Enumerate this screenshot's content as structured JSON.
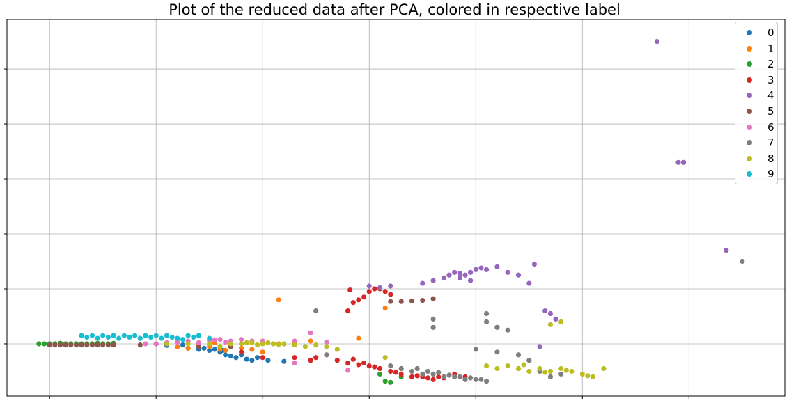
{
  "chart_data": {
    "type": "scatter",
    "title": "Plot of the reduced data after PCA, colored in respective label",
    "xlabel": "",
    "ylabel": "",
    "xlim": [
      -0.4,
      6.9
    ],
    "ylim": [
      -0.95,
      5.9
    ],
    "xticks": [
      0,
      1,
      2,
      3,
      4,
      5,
      6
    ],
    "yticks": [
      0,
      1,
      2,
      3,
      4,
      5
    ],
    "tick_labels_shown": false,
    "grid": true,
    "legend_placement": "upper-right",
    "series": [
      {
        "name": "0",
        "color": "#1f77b4",
        "points": [
          [
            1.0,
            0.0
          ],
          [
            1.1,
            -0.03
          ],
          [
            1.2,
            -0.05
          ],
          [
            1.3,
            -0.08
          ],
          [
            1.4,
            -0.1
          ],
          [
            1.5,
            -0.12
          ],
          [
            1.6,
            -0.15
          ],
          [
            1.65,
            -0.2
          ],
          [
            1.7,
            -0.22
          ],
          [
            1.75,
            -0.25
          ],
          [
            1.8,
            -0.2
          ],
          [
            1.85,
            -0.28
          ],
          [
            1.9,
            -0.3
          ],
          [
            1.95,
            -0.25
          ],
          [
            2.05,
            -0.3
          ],
          [
            2.2,
            -0.32
          ],
          [
            1.25,
            -0.02
          ],
          [
            1.45,
            -0.08
          ],
          [
            1.55,
            -0.1
          ],
          [
            1.62,
            -0.12
          ]
        ]
      },
      {
        "name": "1",
        "color": "#ff7f0e",
        "points": [
          [
            1.2,
            -0.05
          ],
          [
            1.3,
            -0.08
          ],
          [
            1.4,
            -0.02
          ],
          [
            1.5,
            -0.05
          ],
          [
            1.6,
            -0.1
          ],
          [
            1.7,
            -0.05
          ],
          [
            1.8,
            -0.08
          ],
          [
            1.9,
            -0.1
          ],
          [
            2.0,
            -0.15
          ],
          [
            2.15,
            0.0
          ],
          [
            2.3,
            0.0
          ],
          [
            2.45,
            0.05
          ],
          [
            2.9,
            0.1
          ],
          [
            2.15,
            0.8
          ],
          [
            3.15,
            0.65
          ],
          [
            3.1,
            -0.45
          ],
          [
            3.3,
            -0.45
          ],
          [
            1.55,
            0.02
          ],
          [
            1.65,
            -0.12
          ]
        ]
      },
      {
        "name": "2",
        "color": "#2ca02c",
        "points": [
          [
            -0.1,
            0.0
          ],
          [
            -0.05,
            0.0
          ],
          [
            0.0,
            0.0
          ],
          [
            0.05,
            0.0
          ],
          [
            0.1,
            0.01
          ],
          [
            0.15,
            0.0
          ],
          [
            0.2,
            0.0
          ],
          [
            0.25,
            0.0
          ],
          [
            0.3,
            0.0
          ],
          [
            0.35,
            0.0
          ],
          [
            0.4,
            0.0
          ],
          [
            0.45,
            0.01
          ],
          [
            0.5,
            0.0
          ],
          [
            0.55,
            0.0
          ],
          [
            0.6,
            0.01
          ],
          [
            3.1,
            -0.55
          ],
          [
            3.15,
            -0.68
          ],
          [
            3.2,
            -0.7
          ],
          [
            3.3,
            -0.6
          ]
        ]
      },
      {
        "name": "3",
        "color": "#d62728",
        "points": [
          [
            1.8,
            -0.15
          ],
          [
            2.0,
            -0.25
          ],
          [
            2.3,
            -0.25
          ],
          [
            2.45,
            -0.3
          ],
          [
            2.5,
            -0.25
          ],
          [
            2.6,
            -0.2
          ],
          [
            2.7,
            -0.3
          ],
          [
            2.8,
            -0.35
          ],
          [
            2.9,
            -0.38
          ],
          [
            3.0,
            -0.4
          ],
          [
            3.1,
            -0.45
          ],
          [
            3.2,
            -0.5
          ],
          [
            3.3,
            -0.55
          ],
          [
            3.4,
            -0.6
          ],
          [
            3.5,
            -0.6
          ],
          [
            3.6,
            -0.65
          ],
          [
            3.7,
            -0.62
          ],
          [
            3.8,
            -0.55
          ],
          [
            3.9,
            -0.6
          ],
          [
            2.85,
            -0.28
          ],
          [
            2.95,
            -0.35
          ],
          [
            3.05,
            -0.42
          ],
          [
            3.25,
            -0.52
          ],
          [
            3.45,
            -0.58
          ],
          [
            3.55,
            -0.62
          ],
          [
            3.65,
            -0.6
          ],
          [
            2.8,
            0.6
          ],
          [
            2.85,
            0.75
          ],
          [
            2.9,
            0.8
          ],
          [
            2.95,
            0.85
          ],
          [
            3.0,
            0.95
          ],
          [
            3.05,
            1.0
          ],
          [
            3.1,
            1.0
          ],
          [
            3.15,
            0.95
          ],
          [
            3.2,
            0.9
          ],
          [
            2.82,
            0.98
          ]
        ]
      },
      {
        "name": "4",
        "color": "#9467bd",
        "points": [
          [
            3.0,
            1.05
          ],
          [
            3.1,
            1.02
          ],
          [
            3.2,
            1.05
          ],
          [
            3.5,
            1.1
          ],
          [
            3.6,
            1.15
          ],
          [
            3.7,
            1.2
          ],
          [
            3.75,
            1.25
          ],
          [
            3.8,
            1.3
          ],
          [
            3.85,
            1.28
          ],
          [
            3.9,
            1.25
          ],
          [
            3.95,
            1.3
          ],
          [
            4.0,
            1.35
          ],
          [
            4.05,
            1.38
          ],
          [
            4.1,
            1.35
          ],
          [
            4.2,
            1.4
          ],
          [
            4.3,
            1.3
          ],
          [
            4.4,
            1.25
          ],
          [
            4.5,
            1.1
          ],
          [
            4.55,
            1.45
          ],
          [
            4.65,
            0.6
          ],
          [
            4.7,
            0.55
          ],
          [
            4.75,
            0.45
          ],
          [
            4.6,
            -0.05
          ],
          [
            3.85,
            1.2
          ],
          [
            3.95,
            1.15
          ],
          [
            5.7,
            5.5
          ],
          [
            5.9,
            3.3
          ],
          [
            5.95,
            3.3
          ],
          [
            6.35,
            1.7
          ]
        ]
      },
      {
        "name": "5",
        "color": "#8c564b",
        "points": [
          [
            0.0,
            -0.02
          ],
          [
            0.05,
            -0.02
          ],
          [
            0.1,
            -0.02
          ],
          [
            0.15,
            -0.02
          ],
          [
            0.2,
            -0.02
          ],
          [
            0.25,
            -0.02
          ],
          [
            0.3,
            -0.02
          ],
          [
            0.35,
            -0.02
          ],
          [
            0.4,
            -0.02
          ],
          [
            0.45,
            -0.02
          ],
          [
            0.5,
            -0.02
          ],
          [
            0.55,
            -0.02
          ],
          [
            0.6,
            -0.02
          ],
          [
            0.85,
            -0.02
          ],
          [
            1.4,
            -0.05
          ],
          [
            1.6,
            -0.05
          ],
          [
            1.7,
            -0.05
          ],
          [
            3.2,
            0.77
          ],
          [
            3.3,
            0.77
          ],
          [
            3.4,
            0.78
          ],
          [
            3.5,
            0.79
          ],
          [
            3.6,
            0.82
          ]
        ]
      },
      {
        "name": "6",
        "color": "#e377c2",
        "points": [
          [
            0.9,
            0.0
          ],
          [
            1.0,
            0.0
          ],
          [
            1.1,
            0.02
          ],
          [
            1.2,
            0.03
          ],
          [
            1.3,
            0.05
          ],
          [
            1.4,
            0.02
          ],
          [
            1.5,
            0.05
          ],
          [
            1.6,
            0.08
          ],
          [
            1.7,
            0.05
          ],
          [
            1.8,
            0.08
          ],
          [
            1.9,
            0.05
          ],
          [
            2.0,
            0.05
          ],
          [
            2.1,
            0.0
          ],
          [
            2.3,
            0.05
          ],
          [
            2.6,
            0.03
          ],
          [
            1.55,
            0.07
          ],
          [
            1.65,
            0.03
          ],
          [
            2.3,
            -0.35
          ],
          [
            2.45,
            0.2
          ],
          [
            2.8,
            -0.48
          ]
        ]
      },
      {
        "name": "7",
        "color": "#7f7f7f",
        "points": [
          [
            3.2,
            -0.4
          ],
          [
            3.3,
            -0.45
          ],
          [
            3.4,
            -0.5
          ],
          [
            3.5,
            -0.55
          ],
          [
            3.6,
            -0.55
          ],
          [
            3.7,
            -0.6
          ],
          [
            3.8,
            -0.6
          ],
          [
            3.9,
            -0.65
          ],
          [
            4.0,
            -0.65
          ],
          [
            4.1,
            -0.68
          ],
          [
            3.45,
            -0.45
          ],
          [
            3.55,
            -0.5
          ],
          [
            3.65,
            -0.52
          ],
          [
            3.75,
            -0.57
          ],
          [
            3.85,
            -0.6
          ],
          [
            3.95,
            -0.62
          ],
          [
            4.05,
            -0.65
          ],
          [
            2.5,
            0.6
          ],
          [
            3.6,
            0.45
          ],
          [
            4.1,
            0.4
          ],
          [
            4.2,
            0.3
          ],
          [
            4.3,
            0.25
          ],
          [
            4.1,
            0.55
          ],
          [
            4.2,
            0.3
          ],
          [
            4.0,
            -0.1
          ],
          [
            4.2,
            -0.15
          ],
          [
            4.4,
            -0.2
          ],
          [
            4.5,
            -0.3
          ],
          [
            4.6,
            -0.5
          ],
          [
            4.7,
            -0.6
          ],
          [
            4.8,
            -0.55
          ],
          [
            2.6,
            -0.2
          ],
          [
            3.6,
            0.3
          ],
          [
            6.5,
            1.5
          ]
        ]
      },
      {
        "name": "8",
        "color": "#bcbd22",
        "points": [
          [
            1.1,
            0.0
          ],
          [
            1.3,
            0.0
          ],
          [
            1.5,
            0.0
          ],
          [
            1.6,
            -0.05
          ],
          [
            1.7,
            0.0
          ],
          [
            1.8,
            0.0
          ],
          [
            1.9,
            0.02
          ],
          [
            2.0,
            0.0
          ],
          [
            2.1,
            0.0
          ],
          [
            2.2,
            0.0
          ],
          [
            2.3,
            -0.02
          ],
          [
            2.4,
            -0.05
          ],
          [
            2.5,
            -0.02
          ],
          [
            2.6,
            -0.05
          ],
          [
            2.7,
            -0.1
          ],
          [
            1.85,
            0.02
          ],
          [
            1.95,
            -0.02
          ],
          [
            2.05,
            0.02
          ],
          [
            2.15,
            -0.01
          ],
          [
            3.15,
            -0.25
          ],
          [
            4.1,
            -0.4
          ],
          [
            4.2,
            -0.45
          ],
          [
            4.3,
            -0.4
          ],
          [
            4.4,
            -0.45
          ],
          [
            4.5,
            -0.5
          ],
          [
            4.6,
            -0.45
          ],
          [
            4.7,
            -0.5
          ],
          [
            4.8,
            -0.45
          ],
          [
            4.9,
            -0.5
          ],
          [
            5.0,
            -0.55
          ],
          [
            5.1,
            -0.6
          ],
          [
            5.2,
            -0.45
          ],
          [
            4.45,
            -0.38
          ],
          [
            4.65,
            -0.52
          ],
          [
            4.85,
            -0.48
          ],
          [
            5.05,
            -0.58
          ],
          [
            4.7,
            0.35
          ],
          [
            4.8,
            0.4
          ]
        ]
      },
      {
        "name": "9",
        "color": "#17becf",
        "points": [
          [
            0.3,
            0.15
          ],
          [
            0.4,
            0.15
          ],
          [
            0.5,
            0.15
          ],
          [
            0.6,
            0.15
          ],
          [
            0.7,
            0.15
          ],
          [
            0.8,
            0.15
          ],
          [
            0.9,
            0.15
          ],
          [
            1.0,
            0.15
          ],
          [
            1.05,
            0.1
          ],
          [
            1.1,
            0.15
          ],
          [
            1.2,
            0.1
          ],
          [
            1.3,
            0.15
          ],
          [
            1.4,
            0.15
          ],
          [
            1.5,
            0.1
          ],
          [
            0.35,
            0.12
          ],
          [
            0.45,
            0.1
          ],
          [
            0.55,
            0.12
          ],
          [
            0.65,
            0.1
          ],
          [
            0.75,
            0.12
          ],
          [
            0.85,
            0.1
          ],
          [
            0.95,
            0.12
          ],
          [
            1.15,
            0.12
          ],
          [
            1.25,
            0.08
          ],
          [
            1.35,
            0.12
          ]
        ]
      }
    ]
  }
}
